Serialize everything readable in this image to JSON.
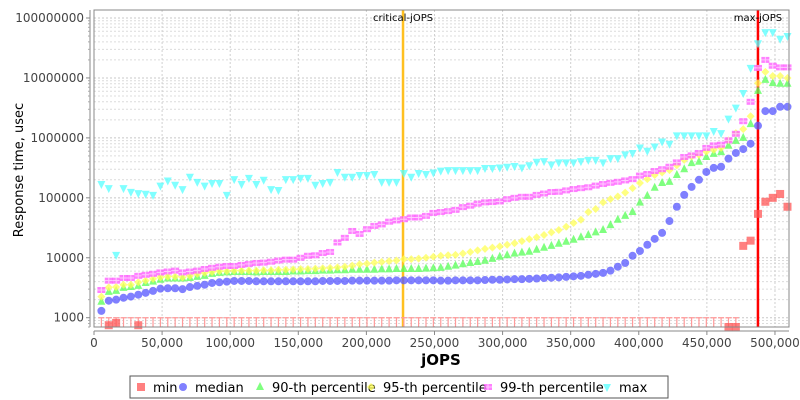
{
  "chart_data": {
    "type": "scatter",
    "xlabel": "jOPS",
    "ylabel": "Response time, usec",
    "xlim": [
      0,
      510300
    ],
    "ylim": [
      700,
      136000000
    ],
    "y_scale": "log",
    "x_ticks": [
      0,
      50000,
      100000,
      150000,
      200000,
      250000,
      300000,
      350000,
      400000,
      450000,
      500000
    ],
    "x_tick_labels": [
      "0",
      "50,000",
      "100,000",
      "150,000",
      "200,000",
      "250,000",
      "300,000",
      "350,000",
      "400,000",
      "450,000",
      "500,000"
    ],
    "y_ticks": [
      1000,
      10000,
      100000,
      1000000,
      10000000,
      100000000
    ],
    "y_tick_labels": [
      "1000",
      "10000",
      "100000",
      "1000000",
      "10000000",
      "100000000"
    ],
    "grid": true,
    "legend_position": "bottom",
    "vertical_markers": [
      {
        "label": "critical-jOPS",
        "x": 226900,
        "color": "#ffc020"
      },
      {
        "label": "max-jOPS",
        "x": 487500,
        "color": "#ff0000"
      }
    ],
    "x": [
      5417,
      10834,
      16251,
      21668,
      27085,
      32502,
      37919,
      43336,
      48753,
      54170,
      59587,
      65004,
      70421,
      75838,
      81255,
      86672,
      92089,
      97506,
      102923,
      108340,
      113757,
      119174,
      124591,
      130008,
      135425,
      140842,
      146259,
      151676,
      157093,
      162510,
      167927,
      173344,
      178761,
      184178,
      189595,
      195012,
      200429,
      205846,
      211263,
      216680,
      222097,
      227514,
      232931,
      238348,
      243765,
      249182,
      254599,
      260016,
      265433,
      270850,
      276267,
      281684,
      287101,
      292518,
      297935,
      303352,
      308769,
      314186,
      319603,
      325020,
      330437,
      335854,
      341271,
      346688,
      352105,
      357522,
      362939,
      368356,
      373773,
      379190,
      384607,
      390024,
      395441,
      400858,
      406275,
      411692,
      417109,
      422526,
      427943,
      433360,
      438777,
      444194,
      449611,
      455028,
      460445,
      465862,
      471279,
      476696,
      482113,
      487530,
      492947,
      498364,
      503781,
      509198
    ],
    "series": [
      {
        "name": "min",
        "color": "#ff5555",
        "marker": "square",
        "values": [
          null,
          750,
          820,
          null,
          null,
          750,
          null,
          null,
          null,
          null,
          null,
          null,
          null,
          null,
          null,
          null,
          null,
          null,
          null,
          null,
          null,
          null,
          null,
          null,
          null,
          null,
          null,
          null,
          null,
          null,
          null,
          null,
          null,
          null,
          null,
          null,
          null,
          null,
          null,
          null,
          null,
          null,
          null,
          null,
          null,
          null,
          null,
          null,
          null,
          null,
          null,
          null,
          null,
          null,
          null,
          null,
          null,
          null,
          null,
          null,
          null,
          null,
          null,
          null,
          null,
          null,
          null,
          null,
          null,
          null,
          null,
          null,
          null,
          null,
          null,
          null,
          null,
          null,
          null,
          null,
          null,
          null,
          null,
          null,
          null,
          700,
          700,
          15800,
          19300,
          54000,
          86000,
          100000,
          116000,
          71000
        ]
      },
      {
        "name": "median",
        "color": "#5555ff",
        "marker": "circle",
        "values": [
          1300,
          1920,
          2000,
          2150,
          2250,
          2420,
          2600,
          2800,
          3050,
          3100,
          3100,
          3000,
          3250,
          3400,
          3550,
          3800,
          3900,
          4000,
          4100,
          4100,
          4100,
          4050,
          4050,
          4050,
          4050,
          4050,
          4050,
          4050,
          4050,
          4050,
          4100,
          4100,
          4100,
          4100,
          4150,
          4150,
          4150,
          4150,
          4150,
          4150,
          4200,
          4200,
          4200,
          4200,
          4200,
          4200,
          4150,
          4150,
          4200,
          4200,
          4200,
          4200,
          4250,
          4300,
          4300,
          4350,
          4400,
          4400,
          4450,
          4500,
          4600,
          4650,
          4700,
          4800,
          4900,
          5000,
          5200,
          5400,
          5600,
          6100,
          7100,
          8200,
          10800,
          13000,
          16500,
          20700,
          26000,
          41000,
          71000,
          112000,
          152000,
          200000,
          270000,
          316000,
          330000,
          450000,
          560000,
          650000,
          800000,
          1600000,
          2800000,
          2800000,
          3300000,
          3300000
        ]
      },
      {
        "name": "90-th percentile",
        "color": "#55ff55",
        "marker": "triangle-up",
        "values": [
          1850,
          2700,
          2800,
          3150,
          3250,
          3400,
          3800,
          4000,
          4300,
          4500,
          4500,
          4500,
          4600,
          4800,
          5000,
          5400,
          5600,
          5700,
          5800,
          5800,
          5800,
          5700,
          5800,
          5800,
          5800,
          5800,
          5900,
          5900,
          6000,
          6000,
          6100,
          6100,
          6200,
          6200,
          6300,
          6300,
          6300,
          6300,
          6400,
          6400,
          6500,
          6500,
          6500,
          6500,
          6600,
          6700,
          6800,
          7100,
          7400,
          7800,
          8200,
          8500,
          8900,
          9600,
          10400,
          11000,
          11700,
          12200,
          12600,
          13600,
          14700,
          15800,
          17100,
          18500,
          20000,
          22000,
          24000,
          26500,
          29000,
          35000,
          43000,
          50000,
          58000,
          83000,
          108000,
          147000,
          177000,
          185000,
          240000,
          300000,
          380000,
          400000,
          480000,
          540000,
          580000,
          740000,
          890000,
          1000000,
          1700000,
          6100000,
          9300000,
          8200000,
          8000000,
          8000000
        ]
      },
      {
        "name": "95-th percentile",
        "color": "#ffff55",
        "marker": "diamond",
        "values": [
          2250,
          3200,
          3250,
          3550,
          3550,
          3900,
          4150,
          4450,
          4700,
          4850,
          4850,
          4700,
          5000,
          5400,
          5600,
          5800,
          6000,
          6000,
          6100,
          6100,
          6100,
          6100,
          6200,
          6200,
          6300,
          6300,
          6400,
          6500,
          6500,
          6600,
          6700,
          6800,
          6900,
          7100,
          7400,
          7800,
          8000,
          8300,
          8500,
          8800,
          9000,
          9500,
          9500,
          9700,
          10000,
          10400,
          10800,
          11000,
          11200,
          11800,
          12500,
          13300,
          14100,
          14800,
          15500,
          16500,
          17500,
          19000,
          20500,
          22000,
          24000,
          26500,
          29000,
          33000,
          38000,
          43000,
          58000,
          65000,
          84000,
          95000,
          105000,
          122000,
          145000,
          177000,
          205000,
          240000,
          265000,
          290000,
          350000,
          430000,
          490000,
          520000,
          590000,
          630000,
          680000,
          910000,
          1200000,
          1400000,
          2300000,
          8200000,
          12600000,
          10800000,
          10800000,
          10000000
        ]
      },
      {
        "name": "99-th percentile",
        "color": "#ff55ff",
        "marker": "square-plus",
        "values": [
          2900,
          4150,
          4150,
          4600,
          4600,
          5000,
          5200,
          5400,
          5700,
          5900,
          6100,
          5700,
          5900,
          6100,
          6500,
          6800,
          7100,
          7300,
          7300,
          7600,
          7900,
          8200,
          8300,
          8600,
          9000,
          9300,
          9300,
          10000,
          10800,
          11000,
          12000,
          12500,
          18000,
          21500,
          28000,
          25000,
          30000,
          34000,
          36000,
          40000,
          42000,
          44000,
          47000,
          47000,
          50000,
          56000,
          58000,
          60000,
          63000,
          70000,
          74000,
          80000,
          84000,
          85000,
          87000,
          95000,
          100000,
          104000,
          104000,
          112000,
          118000,
          125000,
          126000,
          133000,
          140000,
          145000,
          150000,
          160000,
          170000,
          178000,
          185000,
          195000,
          205000,
          235000,
          250000,
          280000,
          300000,
          330000,
          390000,
          480000,
          510000,
          560000,
          680000,
          750000,
          770000,
          910000,
          1170000,
          1900000,
          4000000,
          14700000,
          20000000,
          16000000,
          15000000,
          15000000
        ]
      },
      {
        "name": "max",
        "color": "#55ffff",
        "marker": "triangle-down",
        "values": [
          170000,
          145000,
          11200,
          145000,
          126000,
          120000,
          117000,
          112000,
          160000,
          195000,
          165000,
          140000,
          225000,
          185000,
          160000,
          177000,
          177000,
          112000,
          205000,
          170000,
          215000,
          170000,
          200000,
          140000,
          135000,
          205000,
          205000,
          215000,
          215000,
          165000,
          177000,
          185000,
          270000,
          225000,
          225000,
          240000,
          240000,
          250000,
          185000,
          185000,
          185000,
          260000,
          225000,
          260000,
          250000,
          265000,
          285000,
          290000,
          290000,
          290000,
          290000,
          290000,
          315000,
          315000,
          320000,
          330000,
          340000,
          320000,
          350000,
          400000,
          410000,
          360000,
          390000,
          390000,
          390000,
          410000,
          430000,
          430000,
          390000,
          460000,
          460000,
          530000,
          560000,
          690000,
          610000,
          720000,
          870000,
          800000,
          1100000,
          1100000,
          1100000,
          1100000,
          1100000,
          1300000,
          1200000,
          2100000,
          3200000,
          5600000,
          14700000,
          38000000,
          58000000,
          58000000,
          45000000,
          50000000
        ]
      }
    ]
  }
}
